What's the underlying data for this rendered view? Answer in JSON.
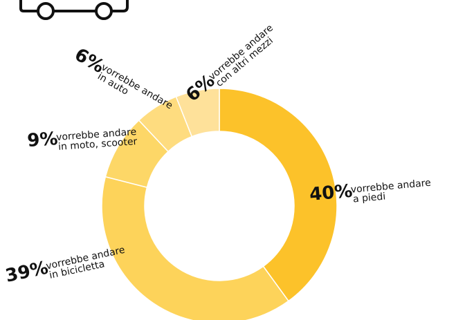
{
  "chart_data": {
    "type": "donut",
    "categories": [
      [
        "vorrebbe andare",
        "a piedi"
      ],
      [
        "vorrebbe andare",
        "in bicicletta"
      ],
      [
        "vorrebbe andare",
        "in moto, scooter"
      ],
      [
        "vorrebbe andare",
        "in auto"
      ],
      [
        "vorrebbe andare",
        "con altri mezzi"
      ]
    ],
    "values": [
      40,
      39,
      9,
      6,
      6
    ],
    "value_labels": [
      "40%",
      "39%",
      "9%",
      "6%",
      "6%"
    ],
    "colors": [
      "#fcc22a",
      "#fdd35a",
      "#fdd767",
      "#fedc7f",
      "#fee19a"
    ]
  }
}
